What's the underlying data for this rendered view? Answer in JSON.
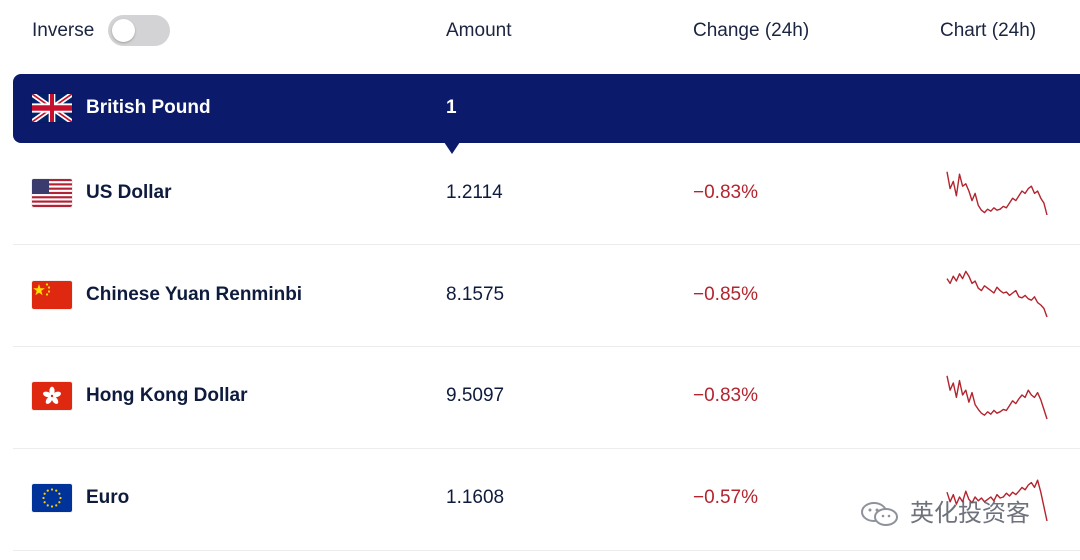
{
  "header": {
    "inverse_label": "Inverse",
    "inverse_on": false,
    "amount_label": "Amount",
    "change_label": "Change (24h)",
    "chart_label": "Chart (24h)"
  },
  "base": {
    "name": "British Pound",
    "amount": "1",
    "flag_icon": "uk-flag-icon"
  },
  "rows": [
    {
      "name": "US Dollar",
      "amount": "1.2114",
      "change": "−0.83%",
      "flag_icon": "us-flag-icon",
      "trend": [
        0.9,
        0.55,
        0.7,
        0.4,
        0.85,
        0.6,
        0.65,
        0.5,
        0.3,
        0.45,
        0.2,
        0.1,
        0.05,
        0.12,
        0.08,
        0.15,
        0.1,
        0.12,
        0.18,
        0.15,
        0.25,
        0.35,
        0.3,
        0.4,
        0.5,
        0.45,
        0.55,
        0.6,
        0.45,
        0.5,
        0.35,
        0.25,
        0.0
      ]
    },
    {
      "name": "Chinese Yuan Renminbi",
      "amount": "8.1575",
      "change": "−0.85%",
      "flag_icon": "cn-flag-icon",
      "trend": [
        0.8,
        0.7,
        0.85,
        0.75,
        0.9,
        0.8,
        0.95,
        0.85,
        0.7,
        0.75,
        0.6,
        0.55,
        0.65,
        0.6,
        0.55,
        0.5,
        0.62,
        0.55,
        0.5,
        0.52,
        0.45,
        0.5,
        0.55,
        0.42,
        0.4,
        0.45,
        0.38,
        0.35,
        0.42,
        0.3,
        0.25,
        0.18,
        0.0
      ]
    },
    {
      "name": "Hong Kong Dollar",
      "amount": "9.5097",
      "change": "−0.83%",
      "flag_icon": "hk-flag-icon",
      "trend": [
        0.9,
        0.6,
        0.75,
        0.45,
        0.8,
        0.5,
        0.6,
        0.35,
        0.55,
        0.3,
        0.2,
        0.12,
        0.08,
        0.15,
        0.1,
        0.18,
        0.12,
        0.15,
        0.2,
        0.18,
        0.28,
        0.38,
        0.32,
        0.42,
        0.5,
        0.45,
        0.6,
        0.5,
        0.45,
        0.55,
        0.4,
        0.2,
        0.0
      ]
    },
    {
      "name": "Euro",
      "amount": "1.1608",
      "change": "−0.57%",
      "flag_icon": "eu-flag-icon",
      "trend": [
        0.6,
        0.4,
        0.55,
        0.35,
        0.5,
        0.4,
        0.62,
        0.45,
        0.38,
        0.5,
        0.42,
        0.48,
        0.4,
        0.45,
        0.5,
        0.42,
        0.55,
        0.48,
        0.5,
        0.58,
        0.52,
        0.6,
        0.55,
        0.62,
        0.7,
        0.65,
        0.75,
        0.8,
        0.7,
        0.85,
        0.6,
        0.3,
        0.0
      ]
    }
  ],
  "colors": {
    "base_row_bg": "#0b1a6b",
    "negative": "#b3242e"
  },
  "watermark": {
    "text": "英化投资客",
    "icon": "wechat-icon"
  }
}
